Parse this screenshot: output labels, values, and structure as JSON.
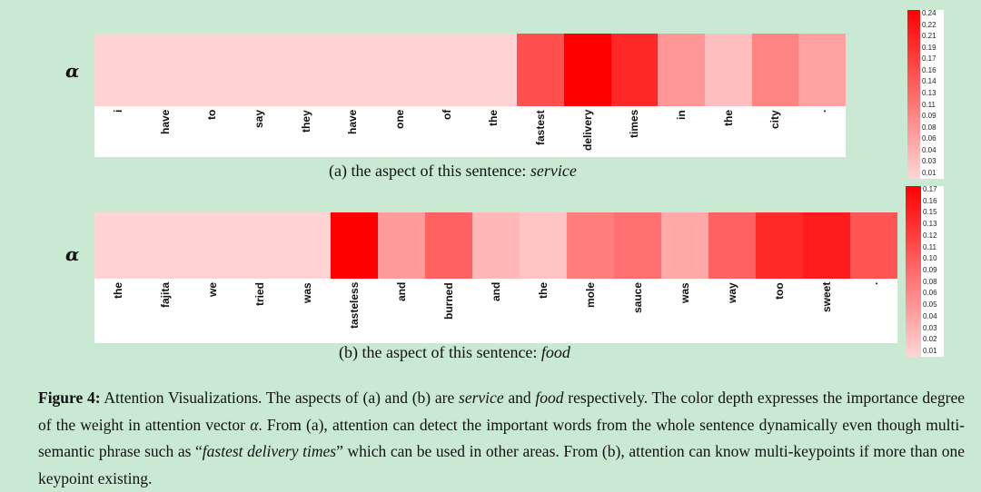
{
  "panel_a": {
    "symbol": "α",
    "caption_prefix": "(a) the aspect of this sentence: ",
    "caption_aspect": "service",
    "words": [
      "i",
      "have",
      "to",
      "say",
      "they",
      "have",
      "one",
      "of",
      "the",
      "fastest",
      "delivery",
      "times",
      "in",
      "the",
      "city",
      "."
    ],
    "weights": [
      0.03,
      0.03,
      0.03,
      0.03,
      0.03,
      0.03,
      0.03,
      0.03,
      0.03,
      0.16,
      0.24,
      0.2,
      0.09,
      0.05,
      0.11,
      0.08
    ],
    "colorbar_ticks": [
      "0.24",
      "0.22",
      "0.21",
      "0.19",
      "0.17",
      "0.16",
      "0.14",
      "0.13",
      "0.11",
      "0.09",
      "0.08",
      "0.06",
      "0.04",
      "0.03",
      "0.01"
    ]
  },
  "panel_b": {
    "symbol": "α",
    "caption_prefix": "(b) the aspect of this sentence: ",
    "caption_aspect": "food",
    "words": [
      "the",
      "fajita",
      "we",
      "tried",
      "was",
      "tasteless",
      "and",
      "burned",
      "and",
      "the",
      "mole",
      "sauce",
      "was",
      "way",
      "too",
      "sweet",
      "."
    ],
    "weights": [
      0.02,
      0.02,
      0.02,
      0.02,
      0.02,
      0.17,
      0.06,
      0.1,
      0.04,
      0.03,
      0.08,
      0.09,
      0.05,
      0.1,
      0.14,
      0.15,
      0.11
    ],
    "colorbar_ticks": [
      "0.17",
      "0.16",
      "0.15",
      "0.13",
      "0.12",
      "0.11",
      "0.10",
      "0.09",
      "0.08",
      "0.06",
      "0.05",
      "0.04",
      "0.03",
      "0.02",
      "0.01"
    ]
  },
  "figure_caption": {
    "label": "Figure 4:",
    "text_1": " Attention Visualizations. The aspects of (a) and (b) are ",
    "em_1": "service",
    "text_2": " and ",
    "em_2": "food",
    "text_3": " respectively. The color depth expresses the importance degree of the weight in attention vector ",
    "em_3": "α",
    "text_4": ". From (a), attention can detect the important words from the whole sentence dynamically even though multi-semantic phrase such as “",
    "em_4": "fastest delivery times",
    "text_5": "” which can be used in other areas. From (b), attention can know multi-keypoints if more than one keypoint existing."
  },
  "colors": {
    "background": "#c9e9d2",
    "heat_low": "#ffd3d3",
    "heat_high": "#ff0000"
  }
}
